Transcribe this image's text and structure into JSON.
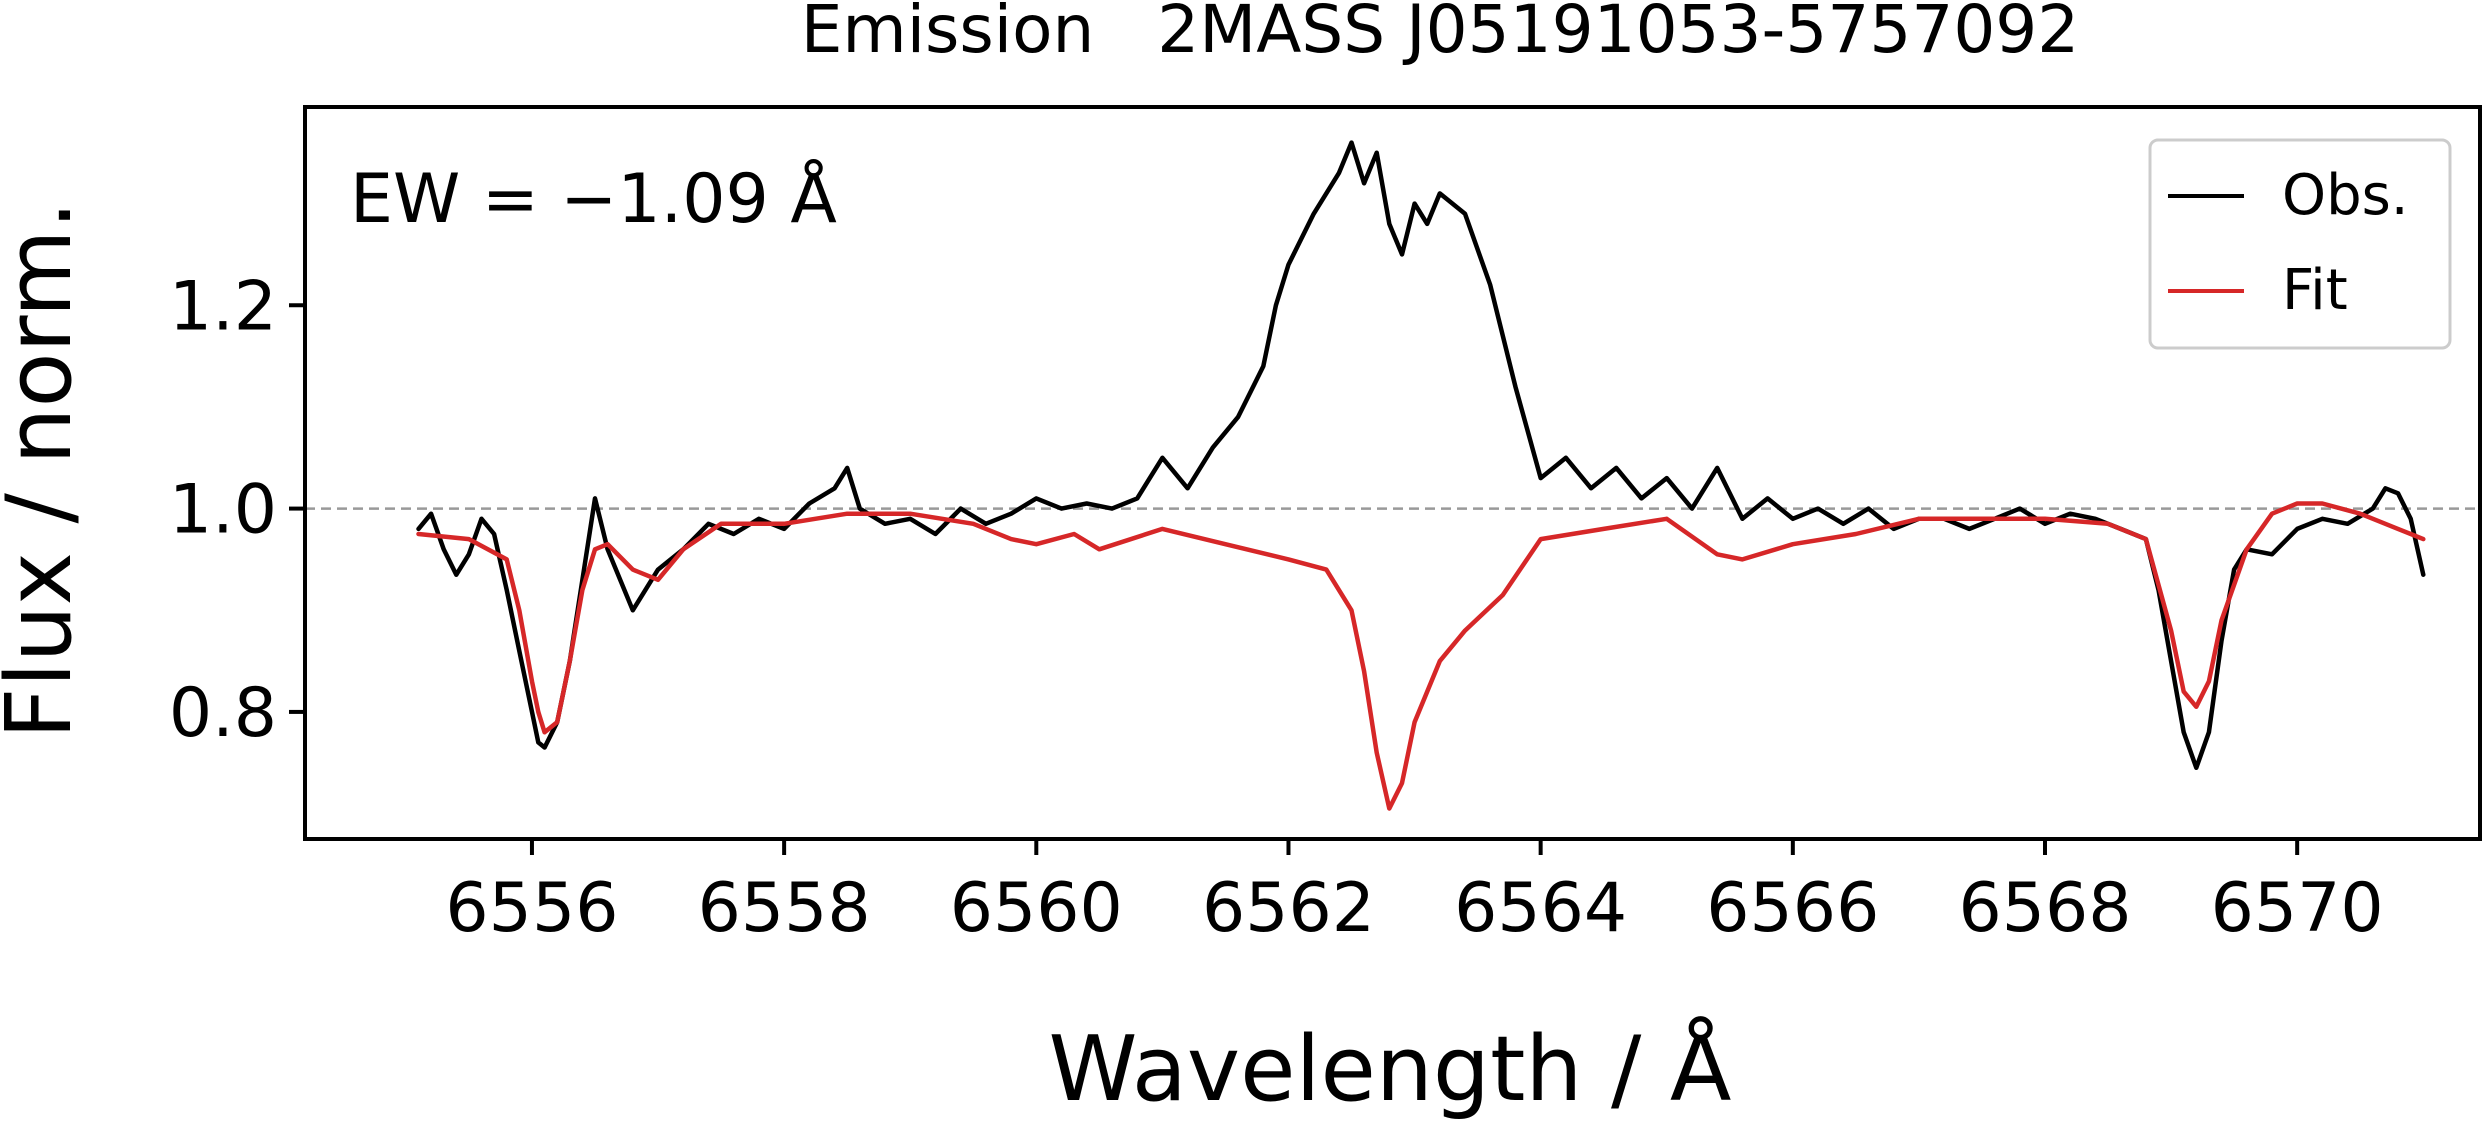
{
  "chart_data": {
    "type": "line",
    "title": "Emission   2MASS J05191053-5757092",
    "xlabel": "Wavelength / Å",
    "ylabel": "Flux / norm.",
    "xlim": [
      6554.2,
      6571.45
    ],
    "ylim": [
      0.675,
      1.395
    ],
    "x_ticks": [
      6556,
      6558,
      6560,
      6562,
      6564,
      6566,
      6568,
      6570
    ],
    "y_ticks": [
      0.8,
      1.0,
      1.2
    ],
    "x_tick_labels": [
      "6556",
      "6558",
      "6560",
      "6562",
      "6564",
      "6566",
      "6568",
      "6570"
    ],
    "y_tick_labels": [
      "0.8",
      "1.0",
      "1.2"
    ],
    "reference_line": {
      "y": 1.0,
      "style": "dashed",
      "color": "#999999"
    },
    "annotation": {
      "text": "EW = −1.09 Å",
      "position": "top-left"
    },
    "legend": {
      "position": "top-right",
      "entries": [
        "Obs.",
        "Fit"
      ]
    },
    "grid": false,
    "series": [
      {
        "name": "Obs.",
        "color": "#000000",
        "x": [
          6555.1,
          6555.2,
          6555.3,
          6555.4,
          6555.5,
          6555.6,
          6555.7,
          6555.8,
          6555.9,
          6556.0,
          6556.05,
          6556.1,
          6556.2,
          6556.3,
          6556.4,
          6556.5,
          6556.6,
          6556.7,
          6556.8,
          6556.9,
          6557.0,
          6557.2,
          6557.4,
          6557.6,
          6557.8,
          6558.0,
          6558.2,
          6558.4,
          6558.5,
          6558.6,
          6558.8,
          6559.0,
          6559.2,
          6559.4,
          6559.6,
          6559.8,
          6560.0,
          6560.2,
          6560.4,
          6560.6,
          6560.8,
          6560.9,
          6561.0,
          6561.2,
          6561.4,
          6561.6,
          6561.8,
          6561.9,
          6562.0,
          6562.2,
          6562.4,
          6562.5,
          6562.6,
          6562.7,
          6562.8,
          6562.9,
          6563.0,
          6563.1,
          6563.2,
          6563.4,
          6563.6,
          6563.8,
          6564.0,
          6564.2,
          6564.4,
          6564.6,
          6564.8,
          6565.0,
          6565.2,
          6565.4,
          6565.6,
          6565.8,
          6566.0,
          6566.2,
          6566.4,
          6566.6,
          6566.8,
          6567.0,
          6567.2,
          6567.4,
          6567.6,
          6567.8,
          6568.0,
          6568.2,
          6568.4,
          6568.6,
          6568.8,
          6568.9,
          6569.0,
          6569.1,
          6569.2,
          6569.3,
          6569.4,
          6569.5,
          6569.6,
          6569.8,
          6570.0,
          6570.2,
          6570.4,
          6570.6,
          6570.7,
          6570.8,
          6570.9,
          6571.0
        ],
        "y": [
          0.98,
          0.995,
          0.96,
          0.935,
          0.955,
          0.99,
          0.975,
          0.92,
          0.86,
          0.8,
          0.77,
          0.765,
          0.79,
          0.85,
          0.93,
          1.01,
          0.96,
          0.93,
          0.9,
          0.92,
          0.94,
          0.96,
          0.985,
          0.975,
          0.99,
          0.98,
          1.005,
          1.02,
          1.04,
          1.0,
          0.985,
          0.99,
          0.975,
          1.0,
          0.985,
          0.995,
          1.01,
          1.0,
          1.005,
          1.0,
          1.01,
          1.03,
          1.05,
          1.02,
          1.06,
          1.09,
          1.14,
          1.2,
          1.24,
          1.29,
          1.33,
          1.36,
          1.32,
          1.35,
          1.28,
          1.25,
          1.3,
          1.28,
          1.31,
          1.29,
          1.22,
          1.12,
          1.03,
          1.05,
          1.02,
          1.04,
          1.01,
          1.03,
          1.0,
          1.04,
          0.99,
          1.01,
          0.99,
          1.0,
          0.985,
          1.0,
          0.98,
          0.99,
          0.99,
          0.98,
          0.99,
          1.0,
          0.985,
          0.995,
          0.99,
          0.98,
          0.97,
          0.92,
          0.85,
          0.78,
          0.745,
          0.78,
          0.87,
          0.94,
          0.96,
          0.955,
          0.98,
          0.99,
          0.985,
          1.0,
          1.02,
          1.015,
          0.99,
          0.935
        ]
      },
      {
        "name": "Fit",
        "color": "#d62728",
        "x": [
          6555.1,
          6555.5,
          6555.8,
          6555.9,
          6556.0,
          6556.05,
          6556.1,
          6556.2,
          6556.3,
          6556.4,
          6556.5,
          6556.6,
          6556.8,
          6557.0,
          6557.2,
          6557.5,
          6558.0,
          6558.5,
          6559.0,
          6559.5,
          6559.8,
          6560.0,
          6560.3,
          6560.5,
          6561.0,
          6561.5,
          6562.0,
          6562.3,
          6562.5,
          6562.6,
          6562.7,
          6562.8,
          6562.9,
          6563.0,
          6563.2,
          6563.4,
          6563.7,
          6564.0,
          6564.5,
          6565.0,
          6565.4,
          6565.6,
          6566.0,
          6566.5,
          6567.0,
          6567.5,
          6568.0,
          6568.5,
          6568.8,
          6569.0,
          6569.1,
          6569.2,
          6569.3,
          6569.4,
          6569.6,
          6569.8,
          6570.0,
          6570.2,
          6570.5,
          6570.8,
          6571.0
        ],
        "y": [
          0.975,
          0.97,
          0.95,
          0.9,
          0.83,
          0.8,
          0.78,
          0.79,
          0.85,
          0.92,
          0.96,
          0.965,
          0.94,
          0.93,
          0.96,
          0.985,
          0.985,
          0.995,
          0.995,
          0.985,
          0.97,
          0.965,
          0.975,
          0.96,
          0.98,
          0.965,
          0.95,
          0.94,
          0.9,
          0.84,
          0.76,
          0.705,
          0.73,
          0.79,
          0.85,
          0.88,
          0.915,
          0.97,
          0.98,
          0.99,
          0.955,
          0.95,
          0.965,
          0.975,
          0.99,
          0.99,
          0.99,
          0.985,
          0.97,
          0.88,
          0.82,
          0.805,
          0.83,
          0.89,
          0.96,
          0.995,
          1.005,
          1.005,
          0.995,
          0.98,
          0.97
        ]
      }
    ]
  }
}
